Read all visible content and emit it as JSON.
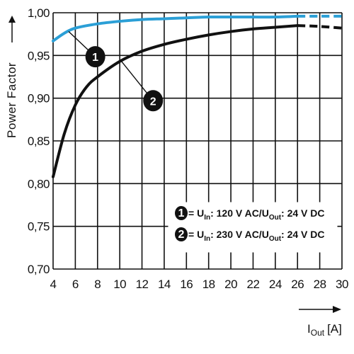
{
  "chart_data": {
    "type": "line",
    "title": "",
    "ylabel": "Power Factor",
    "xlabel": "I",
    "xlabel_sub": "Out",
    "xlabel_unit": "[A]",
    "xlim": [
      4,
      30
    ],
    "ylim": [
      0.7,
      1.0
    ],
    "x_ticks": [
      "4",
      "6",
      "8",
      "10",
      "12",
      "14",
      "16",
      "18",
      "20",
      "22",
      "24",
      "26",
      "28",
      "30"
    ],
    "y_ticks": [
      "0,70",
      "0,75",
      "0,80",
      "0,85",
      "0,90",
      "0,95",
      "1,00"
    ],
    "grid": true,
    "legend_position": "bottom-right",
    "series": [
      {
        "name": "1",
        "color": "#2b9fd6",
        "x": [
          4,
          5,
          6,
          8,
          10,
          12,
          14,
          16,
          18,
          20,
          22,
          24,
          26
        ],
        "y": [
          0.967,
          0.976,
          0.982,
          0.987,
          0.99,
          0.992,
          0.993,
          0.994,
          0.995,
          0.995,
          0.995,
          0.995,
          0.996
        ],
        "dashed_x": [
          26,
          28,
          30
        ],
        "dashed_y": [
          0.996,
          0.996,
          0.996
        ]
      },
      {
        "name": "2",
        "color": "#111111",
        "x": [
          4,
          5,
          6,
          7,
          8,
          10,
          12,
          14,
          16,
          18,
          20,
          22,
          24,
          26
        ],
        "y": [
          0.808,
          0.858,
          0.892,
          0.913,
          0.925,
          0.943,
          0.955,
          0.963,
          0.969,
          0.974,
          0.978,
          0.981,
          0.983,
          0.985
        ],
        "dashed_x": [
          26,
          28,
          30
        ],
        "dashed_y": [
          0.985,
          0.984,
          0.982
        ]
      }
    ],
    "markers": [
      {
        "label": "1",
        "x": 7.8,
        "y": 0.9485,
        "target_x": 5.4,
        "target_y": 0.978
      },
      {
        "label": "2",
        "x": 13.0,
        "y": 0.897,
        "target_x": 10.1,
        "target_y": 0.944
      }
    ],
    "legend": [
      {
        "num": "1",
        "parts": [
          [
            "= U",
            ""
          ],
          [
            "In",
            "sub"
          ],
          [
            ": 120 V AC/U",
            ""
          ],
          [
            "Out",
            "sub"
          ],
          [
            ": 24 V DC",
            ""
          ]
        ]
      },
      {
        "num": "2",
        "parts": [
          [
            "= U",
            ""
          ],
          [
            "In",
            "sub"
          ],
          [
            ": 230 V AC/U",
            ""
          ],
          [
            "Out",
            "sub"
          ],
          [
            ": 24 V DC",
            ""
          ]
        ]
      }
    ]
  }
}
